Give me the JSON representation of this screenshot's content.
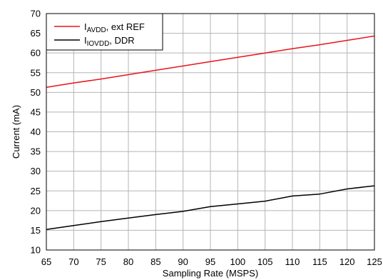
{
  "chart_data": {
    "type": "line",
    "xlabel": "Sampling Rate (MSPS)",
    "ylabel": "Current (mA)",
    "xlim": [
      65,
      125
    ],
    "ylim": [
      10,
      70
    ],
    "xticks": [
      65,
      70,
      75,
      80,
      85,
      90,
      95,
      100,
      105,
      110,
      115,
      120,
      125
    ],
    "yticks": [
      10,
      15,
      20,
      25,
      30,
      35,
      40,
      45,
      50,
      55,
      60,
      65,
      70
    ],
    "grid": true,
    "legend_position": "top-left",
    "series": [
      {
        "legend_main": "I",
        "legend_sub": "AVDD",
        "legend_rest": ", ext REF",
        "color": "#e8141b",
        "x": [
          65,
          70,
          75,
          80,
          85,
          90,
          95,
          100,
          105,
          110,
          115,
          120,
          125
        ],
        "y": [
          51.3,
          52.4,
          53.4,
          54.5,
          55.6,
          56.7,
          57.8,
          58.9,
          60.0,
          61.1,
          62.1,
          63.2,
          64.3
        ]
      },
      {
        "legend_main": "I",
        "legend_sub": "IOVDD",
        "legend_rest": ", DDR",
        "color": "#000000",
        "x": [
          65,
          70,
          75,
          80,
          85,
          90,
          95,
          100,
          105,
          110,
          115,
          120,
          125
        ],
        "y": [
          15.2,
          16.2,
          17.2,
          18.1,
          19.0,
          19.8,
          21.0,
          21.7,
          22.4,
          23.7,
          24.2,
          25.5,
          26.3
        ]
      }
    ]
  }
}
